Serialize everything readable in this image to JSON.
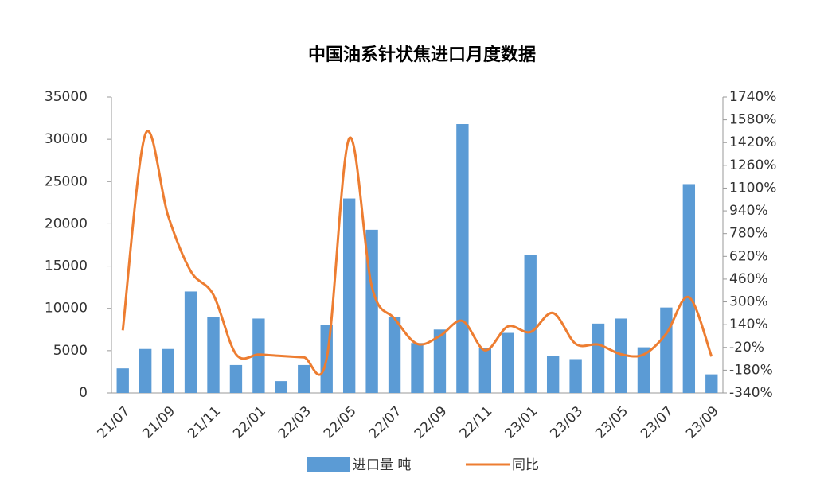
{
  "chart_data": {
    "type": "bar",
    "title": "中国油系针状焦进口月度数据",
    "categories": [
      "21/07",
      null,
      "21/09",
      null,
      "21/11",
      null,
      "22/01",
      null,
      "22/03",
      null,
      "22/05",
      null,
      "22/07",
      null,
      "22/09",
      null,
      "22/11",
      null,
      "23/01",
      null,
      "23/03",
      null,
      "23/05",
      null,
      "23/07",
      null,
      "23/09"
    ],
    "series": [
      {
        "name": "进口量 吨",
        "type": "bar",
        "color": "#5b9bd5",
        "values": [
          2900,
          5200,
          5200,
          12000,
          9000,
          3300,
          8800,
          1400,
          3300,
          8000,
          23000,
          19300,
          9000,
          5900,
          7500,
          31800,
          5300,
          7100,
          16300,
          4400,
          4000,
          8200,
          8800,
          5400,
          10100,
          24700,
          2200
        ]
      },
      {
        "name": "同比",
        "type": "line",
        "axis": "y2",
        "color": "#ed7d31",
        "values": [
          100,
          1480,
          906,
          516,
          350,
          -68,
          -70,
          -80,
          -90,
          -100,
          1450,
          405,
          183,
          5,
          60,
          166,
          -40,
          127,
          88,
          222,
          5,
          0,
          -68,
          -70,
          77,
          333,
          -84
        ]
      }
    ],
    "ylim": [
      0,
      35000
    ],
    "yticks": [
      0,
      5000,
      10000,
      15000,
      20000,
      25000,
      30000,
      35000
    ],
    "y2lim": [
      -340,
      1740
    ],
    "y2ticks": [
      {
        "value": -340,
        "label": "-340%"
      },
      {
        "value": -180,
        "label": "-180%"
      },
      {
        "value": -20,
        "label": "-20%"
      },
      {
        "value": 140,
        "label": "140%"
      },
      {
        "value": 300,
        "label": "300%"
      },
      {
        "value": 460,
        "label": "460%"
      },
      {
        "value": 620,
        "label": "620%"
      },
      {
        "value": 780,
        "label": "780%"
      },
      {
        "value": 940,
        "label": "940%"
      },
      {
        "value": 1100,
        "label": "1100%"
      },
      {
        "value": 1260,
        "label": "1260%"
      },
      {
        "value": 1420,
        "label": "1420%"
      },
      {
        "value": 1580,
        "label": "1580%"
      },
      {
        "value": 1740,
        "label": "1740%"
      }
    ],
    "legend": "bottom",
    "grid": false
  }
}
